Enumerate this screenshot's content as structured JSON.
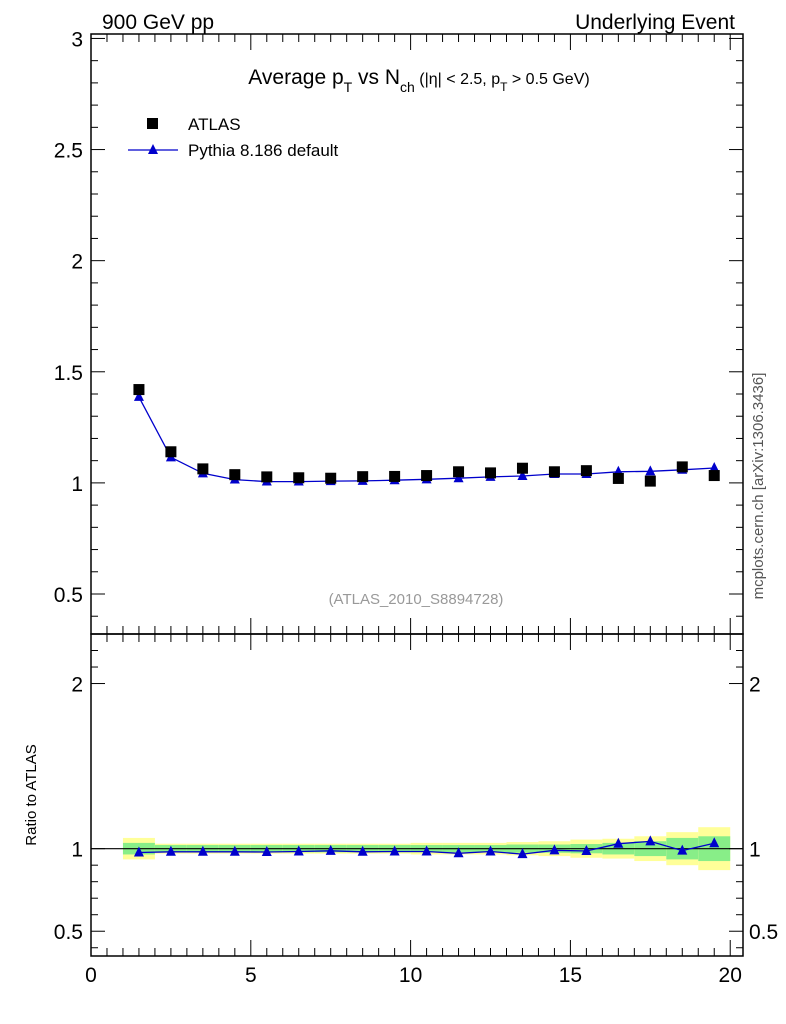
{
  "header": {
    "left": "900 GeV pp",
    "right": "Underlying Event"
  },
  "side_label": "mcplots.cern.ch [arXiv:1306.3436]",
  "analysis_label": "(ATLAS_2010_S8894728)",
  "ratio_ylabel": "Ratio to ATLAS",
  "chart_data": [
    {
      "type": "scatter",
      "title_parts": {
        "prefix": "Average p",
        "pt_sub": "T",
        "mid": " vs N",
        "ch_sub": "ch",
        "cut_a": " (|η| < 2.5, p",
        "cut_sub": "T",
        "cut_b": " > 0.5 GeV)"
      },
      "xlim": [
        0,
        20.4
      ],
      "ylim": [
        0.32,
        3.02
      ],
      "yticks": [
        0.5,
        1,
        1.5,
        2,
        2.5,
        3
      ],
      "ytick_labels": [
        "0.5",
        "1",
        "1.5",
        "2",
        "2.5",
        "3"
      ],
      "x": [
        1.5,
        2.5,
        3.5,
        4.5,
        5.5,
        6.5,
        7.5,
        8.5,
        9.5,
        10.5,
        11.5,
        12.5,
        13.5,
        14.5,
        15.5,
        16.5,
        17.5,
        18.5,
        19.5
      ],
      "series": [
        {
          "name": "ATLAS",
          "style": "markers",
          "color": "#000000",
          "values": [
            1.42,
            1.14,
            1.063,
            1.037,
            1.027,
            1.023,
            1.021,
            1.028,
            1.029,
            1.033,
            1.05,
            1.045,
            1.066,
            1.05,
            1.055,
            1.02,
            1.008,
            1.072,
            1.033
          ]
        },
        {
          "name": "Pythia 8.186 default",
          "style": "line+triangles",
          "color": "#0000cc",
          "values": [
            1.387,
            1.115,
            1.043,
            1.015,
            1.006,
            1.006,
            1.008,
            1.009,
            1.012,
            1.016,
            1.021,
            1.027,
            1.031,
            1.04,
            1.04,
            1.05,
            1.052,
            1.059,
            1.067
          ]
        }
      ]
    },
    {
      "type": "line",
      "ylabel": "Ratio to ATLAS",
      "xlim": [
        0,
        20.4
      ],
      "ylim": [
        0.35,
        2.3
      ],
      "xticks": [
        0,
        5,
        10,
        15,
        20
      ],
      "xtick_labels": [
        "0",
        "5",
        "10",
        "15",
        "20"
      ],
      "yticks": [
        0.5,
        1,
        2
      ],
      "ytick_labels": [
        "0.5",
        "1",
        "2"
      ],
      "x": [
        1.5,
        2.5,
        3.5,
        4.5,
        5.5,
        6.5,
        7.5,
        8.5,
        9.5,
        10.5,
        11.5,
        12.5,
        13.5,
        14.5,
        15.5,
        16.5,
        17.5,
        18.5,
        19.5
      ],
      "bands": {
        "stat_color": "#88ee88",
        "total_color": "#ffff99",
        "stat_half": [
          0.035,
          0.022,
          0.022,
          0.022,
          0.022,
          0.022,
          0.022,
          0.022,
          0.022,
          0.022,
          0.022,
          0.022,
          0.025,
          0.025,
          0.028,
          0.035,
          0.045,
          0.065,
          0.075
        ],
        "total_half": [
          0.065,
          0.03,
          0.03,
          0.03,
          0.03,
          0.03,
          0.03,
          0.03,
          0.03,
          0.035,
          0.035,
          0.035,
          0.04,
          0.045,
          0.055,
          0.06,
          0.075,
          0.1,
          0.13
        ]
      },
      "series": [
        {
          "name": "Pythia 8.186 default",
          "color": "#0000cc",
          "values": [
            0.977,
            0.981,
            0.981,
            0.981,
            0.98,
            0.983,
            0.987,
            0.981,
            0.983,
            0.983,
            0.972,
            0.983,
            0.967,
            0.99,
            0.986,
            1.03,
            1.044,
            0.988,
            1.033
          ]
        }
      ]
    }
  ]
}
